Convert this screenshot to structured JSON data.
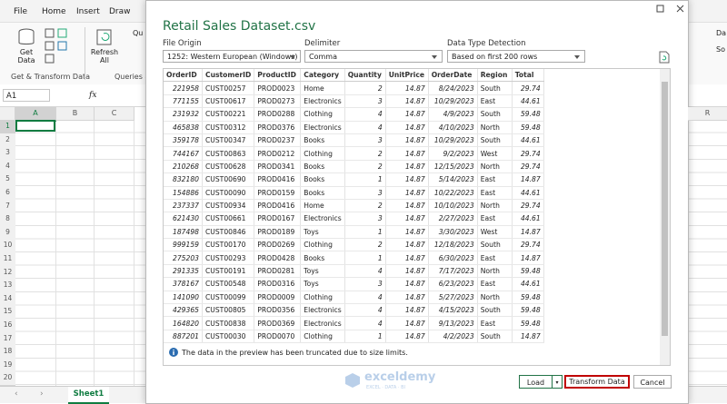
{
  "ribbon": {
    "tabs": [
      "File",
      "Home",
      "Insert",
      "Draw"
    ],
    "get_data": [
      "Get",
      "Data"
    ],
    "refresh_all": [
      "Refresh",
      "All"
    ],
    "partial_items": [
      "Qu",
      "Da",
      "So"
    ],
    "groups": [
      "Get & Transform Data",
      "Queries &"
    ]
  },
  "formula_bar": {
    "name_box": "A1",
    "fx": "fx"
  },
  "sheet": {
    "columns": [
      "A",
      "B",
      "C"
    ],
    "right_column": "R",
    "rows": [
      "1",
      "2",
      "3",
      "4",
      "5",
      "6",
      "7",
      "8",
      "9",
      "10",
      "11",
      "12",
      "13",
      "14",
      "15",
      "16",
      "17",
      "18",
      "19",
      "20"
    ],
    "tab": "Sheet1"
  },
  "dialog": {
    "title": "Retail Sales Dataset.csv",
    "file_origin": {
      "label": "File Origin",
      "value": "1252: Western European (Windows)"
    },
    "delimiter": {
      "label": "Delimiter",
      "value": "Comma"
    },
    "detection": {
      "label": "Data Type Detection",
      "value": "Based on first 200 rows"
    },
    "table": {
      "headers": [
        "OrderID",
        "CustomerID",
        "ProductID",
        "Category",
        "Quantity",
        "UnitPrice",
        "OrderDate",
        "Region",
        "Total"
      ],
      "rows": [
        [
          "221958",
          "CUST00257",
          "PROD0023",
          "Home",
          "2",
          "14.87",
          "8/24/2023",
          "South",
          "29.74"
        ],
        [
          "771155",
          "CUST00617",
          "PROD0273",
          "Electronics",
          "3",
          "14.87",
          "10/29/2023",
          "East",
          "44.61"
        ],
        [
          "231932",
          "CUST00221",
          "PROD0288",
          "Clothing",
          "4",
          "14.87",
          "4/9/2023",
          "South",
          "59.48"
        ],
        [
          "465838",
          "CUST00312",
          "PROD0376",
          "Electronics",
          "4",
          "14.87",
          "4/10/2023",
          "North",
          "59.48"
        ],
        [
          "359178",
          "CUST00347",
          "PROD0237",
          "Books",
          "3",
          "14.87",
          "10/29/2023",
          "South",
          "44.61"
        ],
        [
          "744167",
          "CUST00863",
          "PROD0212",
          "Clothing",
          "2",
          "14.87",
          "9/2/2023",
          "West",
          "29.74"
        ],
        [
          "210268",
          "CUST00628",
          "PROD0341",
          "Books",
          "2",
          "14.87",
          "12/15/2023",
          "North",
          "29.74"
        ],
        [
          "832180",
          "CUST00690",
          "PROD0416",
          "Books",
          "1",
          "14.87",
          "5/14/2023",
          "East",
          "14.87"
        ],
        [
          "154886",
          "CUST00090",
          "PROD0159",
          "Books",
          "3",
          "14.87",
          "10/22/2023",
          "East",
          "44.61"
        ],
        [
          "237337",
          "CUST00934",
          "PROD0416",
          "Home",
          "2",
          "14.87",
          "10/10/2023",
          "North",
          "29.74"
        ],
        [
          "621430",
          "CUST00661",
          "PROD0167",
          "Electronics",
          "3",
          "14.87",
          "2/27/2023",
          "East",
          "44.61"
        ],
        [
          "187498",
          "CUST00846",
          "PROD0189",
          "Toys",
          "1",
          "14.87",
          "3/30/2023",
          "West",
          "14.87"
        ],
        [
          "999159",
          "CUST00170",
          "PROD0269",
          "Clothing",
          "2",
          "14.87",
          "12/18/2023",
          "South",
          "29.74"
        ],
        [
          "275203",
          "CUST00293",
          "PROD0428",
          "Books",
          "1",
          "14.87",
          "6/30/2023",
          "East",
          "14.87"
        ],
        [
          "291335",
          "CUST00191",
          "PROD0281",
          "Toys",
          "4",
          "14.87",
          "7/17/2023",
          "North",
          "59.48"
        ],
        [
          "378167",
          "CUST00548",
          "PROD0316",
          "Toys",
          "3",
          "14.87",
          "6/23/2023",
          "East",
          "44.61"
        ],
        [
          "141090",
          "CUST00099",
          "PROD0009",
          "Clothing",
          "4",
          "14.87",
          "5/27/2023",
          "North",
          "59.48"
        ],
        [
          "429365",
          "CUST00805",
          "PROD0356",
          "Electronics",
          "4",
          "14.87",
          "4/15/2023",
          "South",
          "59.48"
        ],
        [
          "164820",
          "CUST00838",
          "PROD0369",
          "Electronics",
          "4",
          "14.87",
          "9/13/2023",
          "East",
          "59.48"
        ],
        [
          "887201",
          "CUST00030",
          "PROD0070",
          "Clothing",
          "1",
          "14.87",
          "4/2/2023",
          "South",
          "14.87"
        ]
      ]
    },
    "notice": "The data in the preview has been truncated due to size limits.",
    "buttons": {
      "load": "Load",
      "transform": "Transform Data",
      "cancel": "Cancel"
    }
  },
  "watermark": {
    "name": "exceldemy",
    "tagline": "EXCEL · DATA · BI"
  }
}
